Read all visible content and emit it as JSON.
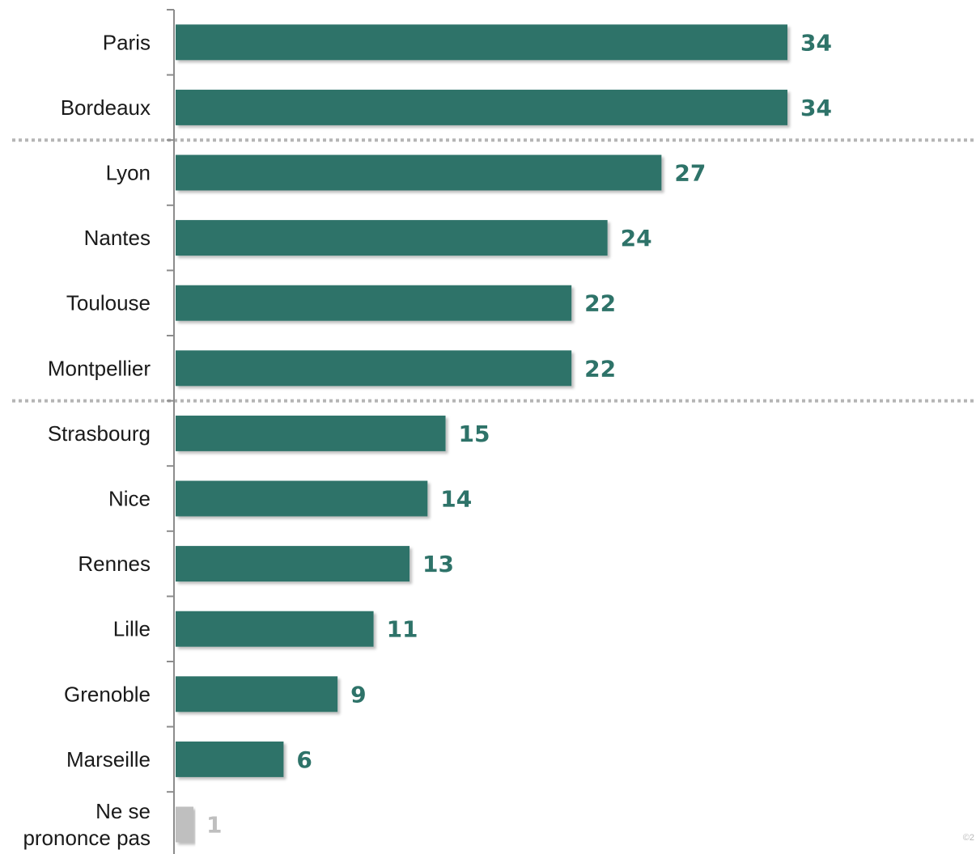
{
  "chart_data": {
    "type": "bar",
    "orientation": "horizontal",
    "categories": [
      "Paris",
      "Bordeaux",
      "Lyon",
      "Nantes",
      "Toulouse",
      "Montpellier",
      "Strasbourg",
      "Nice",
      "Rennes",
      "Lille",
      "Grenoble",
      "Marseille",
      "Ne se\nprononce pas"
    ],
    "values": [
      34,
      34,
      27,
      24,
      22,
      22,
      15,
      14,
      13,
      11,
      9,
      6,
      1
    ],
    "value_labels": [
      "34",
      "34",
      "27",
      "24",
      "22",
      "22",
      "15",
      "14",
      "13",
      "11",
      "9",
      "6",
      "1"
    ],
    "bar_colors": [
      "#2e7369",
      "#2e7369",
      "#2e7369",
      "#2e7369",
      "#2e7369",
      "#2e7369",
      "#2e7369",
      "#2e7369",
      "#2e7369",
      "#2e7369",
      "#2e7369",
      "#2e7369",
      "#bfbfbf"
    ],
    "label_colors": [
      "#2e7369",
      "#2e7369",
      "#2e7369",
      "#2e7369",
      "#2e7369",
      "#2e7369",
      "#2e7369",
      "#2e7369",
      "#2e7369",
      "#2e7369",
      "#2e7369",
      "#2e7369",
      "#bfbfbf"
    ],
    "group_separators_after": [
      1,
      5
    ],
    "title": "",
    "xlabel": "",
    "ylabel": "",
    "xlim": [
      0,
      34
    ],
    "grid": false,
    "legend": "none"
  },
  "footer": {
    "corner_mark": "©2"
  }
}
